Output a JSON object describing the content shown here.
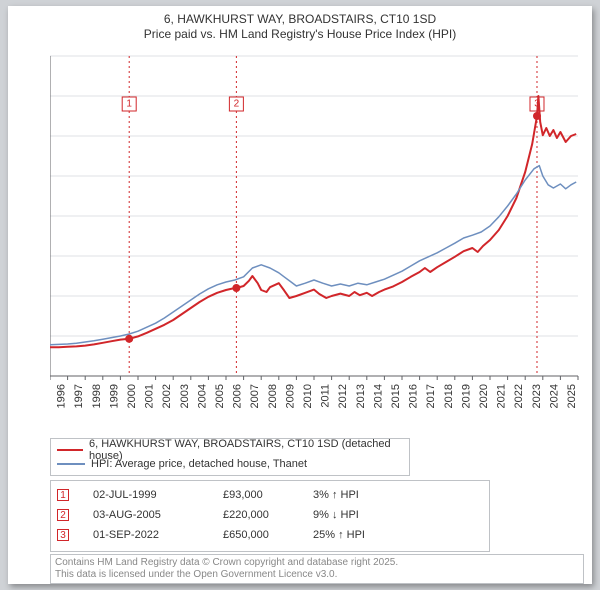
{
  "title": {
    "line1": "6, HAWKHURST WAY, BROADSTAIRS, CT10 1SD",
    "line2": "Price paid vs. HM Land Registry's House Price Index (HPI)"
  },
  "chart": {
    "type": "line",
    "background_color": "#ffffff",
    "grid_color": "#dfe1e4",
    "axis_color": "#606266",
    "x": {
      "min": 1995,
      "max": 2025,
      "tick_step": 1
    },
    "y": {
      "min": 0,
      "max": 800000,
      "tick_step": 100000,
      "prefix": "£",
      "suffix": "K",
      "divide": 1000
    },
    "series": [
      {
        "name": "price_paid",
        "color": "#d1262a",
        "width": 2,
        "points": [
          [
            1995.0,
            72000
          ],
          [
            1995.5,
            72000
          ],
          [
            1996.0,
            73000
          ],
          [
            1996.5,
            74000
          ],
          [
            1997.0,
            76000
          ],
          [
            1997.5,
            79000
          ],
          [
            1998.0,
            83000
          ],
          [
            1998.5,
            87000
          ],
          [
            1999.0,
            91000
          ],
          [
            1999.5,
            93000
          ],
          [
            2000.0,
            99000
          ],
          [
            2000.5,
            108000
          ],
          [
            2001.0,
            118000
          ],
          [
            2001.5,
            128000
          ],
          [
            2002.0,
            140000
          ],
          [
            2002.5,
            155000
          ],
          [
            2003.0,
            170000
          ],
          [
            2003.5,
            185000
          ],
          [
            2004.0,
            198000
          ],
          [
            2004.5,
            208000
          ],
          [
            2005.0,
            215000
          ],
          [
            2005.5,
            220000
          ],
          [
            2005.6,
            220000
          ],
          [
            2006.0,
            225000
          ],
          [
            2006.3,
            238000
          ],
          [
            2006.5,
            250000
          ],
          [
            2006.8,
            232000
          ],
          [
            2007.0,
            215000
          ],
          [
            2007.3,
            210000
          ],
          [
            2007.5,
            222000
          ],
          [
            2008.0,
            232000
          ],
          [
            2008.3,
            214000
          ],
          [
            2008.6,
            195000
          ],
          [
            2009.0,
            200000
          ],
          [
            2009.5,
            208000
          ],
          [
            2010.0,
            216000
          ],
          [
            2010.3,
            205000
          ],
          [
            2010.7,
            195000
          ],
          [
            2011.0,
            200000
          ],
          [
            2011.5,
            206000
          ],
          [
            2012.0,
            200000
          ],
          [
            2012.3,
            210000
          ],
          [
            2012.6,
            202000
          ],
          [
            2013.0,
            208000
          ],
          [
            2013.3,
            200000
          ],
          [
            2013.7,
            210000
          ],
          [
            2014.0,
            216000
          ],
          [
            2014.5,
            224000
          ],
          [
            2015.0,
            235000
          ],
          [
            2015.5,
            248000
          ],
          [
            2016.0,
            260000
          ],
          [
            2016.3,
            270000
          ],
          [
            2016.6,
            260000
          ],
          [
            2017.0,
            272000
          ],
          [
            2017.5,
            285000
          ],
          [
            2018.0,
            298000
          ],
          [
            2018.5,
            312000
          ],
          [
            2019.0,
            320000
          ],
          [
            2019.3,
            310000
          ],
          [
            2019.6,
            325000
          ],
          [
            2020.0,
            340000
          ],
          [
            2020.5,
            365000
          ],
          [
            2021.0,
            400000
          ],
          [
            2021.5,
            445000
          ],
          [
            2022.0,
            510000
          ],
          [
            2022.4,
            580000
          ],
          [
            2022.67,
            650000
          ],
          [
            2022.75,
            700000
          ],
          [
            2022.85,
            635000
          ],
          [
            2023.0,
            602000
          ],
          [
            2023.2,
            620000
          ],
          [
            2023.4,
            600000
          ],
          [
            2023.6,
            615000
          ],
          [
            2023.8,
            595000
          ],
          [
            2024.0,
            610000
          ],
          [
            2024.3,
            585000
          ],
          [
            2024.6,
            600000
          ],
          [
            2024.9,
            605000
          ]
        ]
      },
      {
        "name": "hpi",
        "color": "#6e8fbf",
        "width": 1.5,
        "points": [
          [
            1995.0,
            78000
          ],
          [
            1995.5,
            79000
          ],
          [
            1996.0,
            80000
          ],
          [
            1996.5,
            82000
          ],
          [
            1997.0,
            85000
          ],
          [
            1997.5,
            88000
          ],
          [
            1998.0,
            92000
          ],
          [
            1998.5,
            96000
          ],
          [
            1999.0,
            100000
          ],
          [
            1999.5,
            105000
          ],
          [
            2000.0,
            112000
          ],
          [
            2000.5,
            122000
          ],
          [
            2001.0,
            132000
          ],
          [
            2001.5,
            145000
          ],
          [
            2002.0,
            160000
          ],
          [
            2002.5,
            175000
          ],
          [
            2003.0,
            190000
          ],
          [
            2003.5,
            205000
          ],
          [
            2004.0,
            218000
          ],
          [
            2004.5,
            228000
          ],
          [
            2005.0,
            235000
          ],
          [
            2005.5,
            240000
          ],
          [
            2006.0,
            248000
          ],
          [
            2006.5,
            270000
          ],
          [
            2007.0,
            278000
          ],
          [
            2007.5,
            270000
          ],
          [
            2008.0,
            258000
          ],
          [
            2008.3,
            248000
          ],
          [
            2008.7,
            235000
          ],
          [
            2009.0,
            225000
          ],
          [
            2009.5,
            232000
          ],
          [
            2010.0,
            240000
          ],
          [
            2010.5,
            232000
          ],
          [
            2011.0,
            225000
          ],
          [
            2011.5,
            230000
          ],
          [
            2012.0,
            225000
          ],
          [
            2012.5,
            232000
          ],
          [
            2013.0,
            228000
          ],
          [
            2013.5,
            235000
          ],
          [
            2014.0,
            242000
          ],
          [
            2014.5,
            252000
          ],
          [
            2015.0,
            262000
          ],
          [
            2015.5,
            275000
          ],
          [
            2016.0,
            288000
          ],
          [
            2016.5,
            298000
          ],
          [
            2017.0,
            308000
          ],
          [
            2017.5,
            320000
          ],
          [
            2018.0,
            332000
          ],
          [
            2018.5,
            345000
          ],
          [
            2019.0,
            352000
          ],
          [
            2019.5,
            360000
          ],
          [
            2020.0,
            375000
          ],
          [
            2020.5,
            398000
          ],
          [
            2021.0,
            425000
          ],
          [
            2021.5,
            455000
          ],
          [
            2022.0,
            490000
          ],
          [
            2022.5,
            518000
          ],
          [
            2022.8,
            526000
          ],
          [
            2023.0,
            500000
          ],
          [
            2023.3,
            478000
          ],
          [
            2023.6,
            470000
          ],
          [
            2024.0,
            480000
          ],
          [
            2024.3,
            468000
          ],
          [
            2024.6,
            478000
          ],
          [
            2024.9,
            485000
          ]
        ]
      }
    ],
    "sale_markers": [
      {
        "n": 1,
        "x": 1999.5,
        "y": 93000,
        "box_y": 680000
      },
      {
        "n": 2,
        "x": 2005.59,
        "y": 220000,
        "box_y": 680000
      },
      {
        "n": 3,
        "x": 2022.67,
        "y": 650000,
        "box_y": 680000
      }
    ],
    "marker_line_color": "#d1262a",
    "marker_dot_color": "#d1262a"
  },
  "legend": {
    "items": [
      {
        "color": "#d1262a",
        "label": "6, HAWKHURST WAY, BROADSTAIRS, CT10 1SD (detached house)"
      },
      {
        "color": "#6e8fbf",
        "label": "HPI: Average price, detached house, Thanet"
      }
    ]
  },
  "sales": [
    {
      "n": 1,
      "date": "02-JUL-1999",
      "price": "£93,000",
      "rel": "3% ↑ HPI"
    },
    {
      "n": 2,
      "date": "03-AUG-2005",
      "price": "£220,000",
      "rel": "9% ↓ HPI"
    },
    {
      "n": 3,
      "date": "01-SEP-2022",
      "price": "£650,000",
      "rel": "25% ↑ HPI"
    }
  ],
  "footer": {
    "line1": "Contains HM Land Registry data © Crown copyright and database right 2025.",
    "line2": "This data is licensed under the Open Government Licence v3.0."
  }
}
